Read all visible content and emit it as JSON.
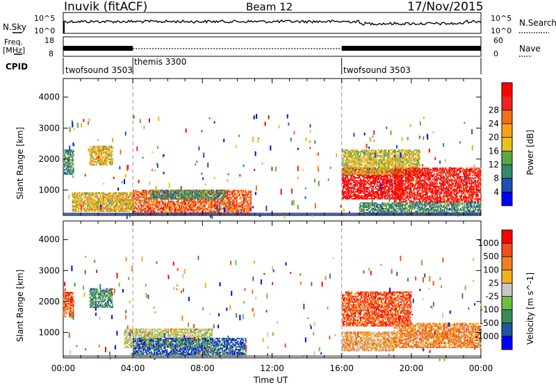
{
  "header": {
    "station": "Inuvik (fitACF)",
    "beam": "Beam 12",
    "date": "17/Nov/2015"
  },
  "noise_panel": {
    "left_label": "N.Sky",
    "right_label": "N.Search",
    "left_ticks": [
      "10^5",
      "10^0"
    ],
    "right_ticks": [
      "10^5",
      "10^0"
    ]
  },
  "freq_panel": {
    "left_label_line1": "Freq.",
    "left_label_line2": "[MHz]",
    "right_label": "Nave",
    "left_ticks": [
      "18",
      "8"
    ],
    "right_ticks": [
      "60",
      "0"
    ]
  },
  "cpid_panel": {
    "label": "CPID",
    "segments": [
      {
        "name": "twofsound 3503",
        "start": 0,
        "end": 4
      },
      {
        "name": "themis 3300",
        "start": 4,
        "end": 16
      },
      {
        "name": "twofsound 3503",
        "start": 16,
        "end": 24
      }
    ]
  },
  "chart_data": [
    {
      "type": "heatmap",
      "title": "",
      "ylabel": "Slant Range [km]",
      "xlabel": "",
      "xlim": [
        0,
        24
      ],
      "ylim": [
        180,
        4600
      ],
      "y_ticks": [
        1000,
        2000,
        3000,
        4000
      ],
      "colorbar_label": "Power [dB]",
      "colorbar_ticks": [
        "4",
        "8",
        "12",
        "16",
        "20",
        "24",
        "28"
      ],
      "colorscale": [
        "#0000ff",
        "#1e4fb4",
        "#2f8c64",
        "#5aa843",
        "#e8c21a",
        "#f7a21a",
        "#f07018",
        "#ee2222",
        "#ff0000"
      ],
      "regions": [
        {
          "t": [
            0.0,
            0.6
          ],
          "r": [
            1500,
            2300
          ],
          "level": 0.3
        },
        {
          "t": [
            1.5,
            2.8
          ],
          "r": [
            1800,
            2400
          ],
          "level": 0.55
        },
        {
          "t": [
            0.5,
            4.0
          ],
          "r": [
            300,
            900
          ],
          "level": 0.55
        },
        {
          "t": [
            4.0,
            10.8
          ],
          "r": [
            200,
            1000
          ],
          "level": 0.75
        },
        {
          "t": [
            5.0,
            9.3
          ],
          "r": [
            700,
            1000
          ],
          "level": 0.3
        },
        {
          "t": [
            16.0,
            19.5
          ],
          "r": [
            700,
            1700
          ],
          "level": 0.95
        },
        {
          "t": [
            16.0,
            20.5
          ],
          "r": [
            1500,
            2300
          ],
          "level": 0.5
        },
        {
          "t": [
            19.0,
            24.0
          ],
          "r": [
            600,
            1700
          ],
          "level": 0.9
        },
        {
          "t": [
            17.0,
            24.0
          ],
          "r": [
            200,
            600
          ],
          "level": 0.3
        }
      ]
    },
    {
      "type": "heatmap",
      "title": "",
      "ylabel": "Slant Range [km]",
      "xlabel": "Time UT",
      "xlim": [
        0,
        24
      ],
      "ylim": [
        180,
        4600
      ],
      "y_ticks": [
        1000,
        2000,
        3000,
        4000
      ],
      "x_tick_labels": [
        "00:00",
        "04:00",
        "08:00",
        "12:00",
        "16:00",
        "20:00",
        "00:00"
      ],
      "x_ticks": [
        0,
        4,
        8,
        12,
        16,
        20,
        24
      ],
      "colorbar_label": "Velocity [m s^-1]",
      "colorbar_ticks": [
        "1000",
        "500",
        "100",
        "25",
        "-25",
        "-100",
        "-500",
        "-1000"
      ],
      "colorscale": [
        "#0000ff",
        "#2255a0",
        "#3a8a55",
        "#6cc040",
        "#c8c8c8",
        "#f2b020",
        "#f08020",
        "#ee5020",
        "#ff0000"
      ],
      "regions": [
        {
          "t": [
            0.0,
            0.6
          ],
          "r": [
            1500,
            2300
          ],
          "level": 0.8
        },
        {
          "t": [
            1.5,
            2.8
          ],
          "r": [
            1800,
            2400
          ],
          "level": 0.3
        },
        {
          "t": [
            3.5,
            8.5
          ],
          "r": [
            500,
            1100
          ],
          "level": 0.5
        },
        {
          "t": [
            4.0,
            10.5
          ],
          "r": [
            200,
            800
          ],
          "level": 0.2
        },
        {
          "t": [
            16.0,
            20.0
          ],
          "r": [
            1200,
            2300
          ],
          "level": 0.82
        },
        {
          "t": [
            16.0,
            19.0
          ],
          "r": [
            400,
            1000
          ],
          "level": 0.65
        },
        {
          "t": [
            19.0,
            24.0
          ],
          "r": [
            500,
            1300
          ],
          "level": 0.72
        }
      ]
    }
  ]
}
